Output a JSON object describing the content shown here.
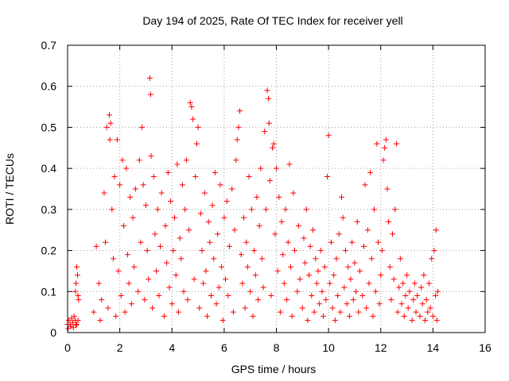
{
  "chart_data": {
    "type": "scatter",
    "title": "Day 194 of 2025, Rate Of TEC Index for receiver yell",
    "xlabel": "GPS time / hours",
    "ylabel": "ROTI / TECUs",
    "xlim": [
      0,
      16
    ],
    "ylim": [
      0,
      0.7
    ],
    "xticks": [
      0,
      2,
      4,
      6,
      8,
      10,
      12,
      14,
      16
    ],
    "yticks": [
      0,
      0.1,
      0.2,
      0.3,
      0.4,
      0.5,
      0.6,
      0.7
    ],
    "xtick_labels": [
      "0",
      "2",
      "4",
      "6",
      "8",
      "10",
      "12",
      "14",
      "16"
    ],
    "ytick_labels": [
      "0",
      "0.1",
      "0.2",
      "0.3",
      "0.4",
      "0.5",
      "0.6",
      "0.7"
    ],
    "grid": true,
    "marker": "+",
    "color": "#ff0000",
    "series": [
      {
        "name": "ROTI",
        "points": [
          [
            0.0,
            0.02
          ],
          [
            0.05,
            0.03
          ],
          [
            0.1,
            0.02
          ],
          [
            0.15,
            0.035
          ],
          [
            0.2,
            0.025
          ],
          [
            0.25,
            0.04
          ],
          [
            0.3,
            0.03
          ],
          [
            0.35,
            0.02
          ],
          [
            0.4,
            0.03
          ],
          [
            0.02,
            0.01
          ],
          [
            0.12,
            0.015
          ],
          [
            0.22,
            0.012
          ],
          [
            0.32,
            0.018
          ],
          [
            0.3,
            0.1
          ],
          [
            0.32,
            0.12
          ],
          [
            0.35,
            0.16
          ],
          [
            0.38,
            0.14
          ],
          [
            0.4,
            0.09
          ],
          [
            0.42,
            0.08
          ],
          [
            1.0,
            0.05
          ],
          [
            1.1,
            0.21
          ],
          [
            1.2,
            0.12
          ],
          [
            1.25,
            0.03
          ],
          [
            1.3,
            0.08
          ],
          [
            1.4,
            0.34
          ],
          [
            1.45,
            0.22
          ],
          [
            1.5,
            0.5
          ],
          [
            1.55,
            0.06
          ],
          [
            1.6,
            0.53
          ],
          [
            1.62,
            0.47
          ],
          [
            1.65,
            0.51
          ],
          [
            1.7,
            0.3
          ],
          [
            1.75,
            0.18
          ],
          [
            1.8,
            0.38
          ],
          [
            1.85,
            0.04
          ],
          [
            1.9,
            0.47
          ],
          [
            1.95,
            0.15
          ],
          [
            2.0,
            0.36
          ],
          [
            2.05,
            0.09
          ],
          [
            2.1,
            0.42
          ],
          [
            2.15,
            0.26
          ],
          [
            2.2,
            0.05
          ],
          [
            2.25,
            0.4
          ],
          [
            2.3,
            0.19
          ],
          [
            2.35,
            0.12
          ],
          [
            2.4,
            0.33
          ],
          [
            2.45,
            0.07
          ],
          [
            2.5,
            0.28
          ],
          [
            2.55,
            0.16
          ],
          [
            2.6,
            0.35
          ],
          [
            2.7,
            0.1
          ],
          [
            2.75,
            0.42
          ],
          [
            2.8,
            0.22
          ],
          [
            2.85,
            0.5
          ],
          [
            2.9,
            0.36
          ],
          [
            2.95,
            0.08
          ],
          [
            3.0,
            0.31
          ],
          [
            3.05,
            0.2
          ],
          [
            3.1,
            0.13
          ],
          [
            3.15,
            0.62
          ],
          [
            3.18,
            0.58
          ],
          [
            3.2,
            0.43
          ],
          [
            3.25,
            0.06
          ],
          [
            3.3,
            0.38
          ],
          [
            3.35,
            0.24
          ],
          [
            3.4,
            0.15
          ],
          [
            3.45,
            0.3
          ],
          [
            3.5,
            0.09
          ],
          [
            3.55,
            0.21
          ],
          [
            3.6,
            0.34
          ],
          [
            3.7,
            0.04
          ],
          [
            3.75,
            0.26
          ],
          [
            3.8,
            0.17
          ],
          [
            3.85,
            0.39
          ],
          [
            3.9,
            0.11
          ],
          [
            3.95,
            0.32
          ],
          [
            4.0,
            0.07
          ],
          [
            4.05,
            0.2
          ],
          [
            4.1,
            0.28
          ],
          [
            4.15,
            0.14
          ],
          [
            4.2,
            0.41
          ],
          [
            4.25,
            0.05
          ],
          [
            4.3,
            0.23
          ],
          [
            4.35,
            0.18
          ],
          [
            4.4,
            0.36
          ],
          [
            4.45,
            0.1
          ],
          [
            4.5,
            0.3
          ],
          [
            4.55,
            0.42
          ],
          [
            4.6,
            0.08
          ],
          [
            4.65,
            0.25
          ],
          [
            4.7,
            0.56
          ],
          [
            4.75,
            0.55
          ],
          [
            4.8,
            0.52
          ],
          [
            4.85,
            0.13
          ],
          [
            4.9,
            0.38
          ],
          [
            4.95,
            0.46
          ],
          [
            5.0,
            0.5
          ],
          [
            5.05,
            0.06
          ],
          [
            5.1,
            0.29
          ],
          [
            5.15,
            0.2
          ],
          [
            5.2,
            0.12
          ],
          [
            5.25,
            0.34
          ],
          [
            5.3,
            0.15
          ],
          [
            5.35,
            0.04
          ],
          [
            5.4,
            0.27
          ],
          [
            5.45,
            0.22
          ],
          [
            5.5,
            0.09
          ],
          [
            5.55,
            0.31
          ],
          [
            5.6,
            0.18
          ],
          [
            5.65,
            0.39
          ],
          [
            5.7,
            0.07
          ],
          [
            5.75,
            0.24
          ],
          [
            5.8,
            0.11
          ],
          [
            5.85,
            0.36
          ],
          [
            5.9,
            0.16
          ],
          [
            5.95,
            0.03
          ],
          [
            6.0,
            0.28
          ],
          [
            6.05,
            0.13
          ],
          [
            6.1,
            0.32
          ],
          [
            6.15,
            0.09
          ],
          [
            6.2,
            0.21
          ],
          [
            6.3,
            0.35
          ],
          [
            6.35,
            0.05
          ],
          [
            6.4,
            0.25
          ],
          [
            6.45,
            0.42
          ],
          [
            6.5,
            0.47
          ],
          [
            6.55,
            0.5
          ],
          [
            6.6,
            0.54
          ],
          [
            6.65,
            0.19
          ],
          [
            6.7,
            0.12
          ],
          [
            6.75,
            0.28
          ],
          [
            6.8,
            0.06
          ],
          [
            6.85,
            0.22
          ],
          [
            6.9,
            0.16
          ],
          [
            6.95,
            0.38
          ],
          [
            7.0,
            0.1
          ],
          [
            7.05,
            0.3
          ],
          [
            7.1,
            0.04
          ],
          [
            7.15,
            0.2
          ],
          [
            7.2,
            0.14
          ],
          [
            7.25,
            0.33
          ],
          [
            7.3,
            0.08
          ],
          [
            7.35,
            0.26
          ],
          [
            7.4,
            0.4
          ],
          [
            7.45,
            0.18
          ],
          [
            7.5,
            0.11
          ],
          [
            7.55,
            0.49
          ],
          [
            7.6,
            0.3
          ],
          [
            7.65,
            0.59
          ],
          [
            7.7,
            0.57
          ],
          [
            7.72,
            0.51
          ],
          [
            7.75,
            0.37
          ],
          [
            7.8,
            0.09
          ],
          [
            7.85,
            0.45
          ],
          [
            7.9,
            0.46
          ],
          [
            7.95,
            0.24
          ],
          [
            8.0,
            0.4
          ],
          [
            8.05,
            0.15
          ],
          [
            8.1,
            0.33
          ],
          [
            8.15,
            0.05
          ],
          [
            8.2,
            0.27
          ],
          [
            8.25,
            0.19
          ],
          [
            8.3,
            0.12
          ],
          [
            8.35,
            0.3
          ],
          [
            8.4,
            0.08
          ],
          [
            8.45,
            0.22
          ],
          [
            8.5,
            0.41
          ],
          [
            8.55,
            0.16
          ],
          [
            8.6,
            0.04
          ],
          [
            8.65,
            0.34
          ],
          [
            8.7,
            0.2
          ],
          [
            8.8,
            0.1
          ],
          [
            8.85,
            0.26
          ],
          [
            8.9,
            0.13
          ],
          [
            9.0,
            0.06
          ],
          [
            9.05,
            0.23
          ],
          [
            9.1,
            0.17
          ],
          [
            9.15,
            0.3
          ],
          [
            9.2,
            0.03
          ],
          [
            9.25,
            0.14
          ],
          [
            9.3,
            0.21
          ],
          [
            9.35,
            0.09
          ],
          [
            9.4,
            0.25
          ],
          [
            9.45,
            0.05
          ],
          [
            9.5,
            0.18
          ],
          [
            9.55,
            0.12
          ],
          [
            9.6,
            0.15
          ],
          [
            9.65,
            0.07
          ],
          [
            9.7,
            0.2
          ],
          [
            9.75,
            0.1
          ],
          [
            9.8,
            0.04
          ],
          [
            9.85,
            0.16
          ],
          [
            9.9,
            0.08
          ],
          [
            9.95,
            0.38
          ],
          [
            10.0,
            0.48
          ],
          [
            10.05,
            0.12
          ],
          [
            10.1,
            0.22
          ],
          [
            10.15,
            0.06
          ],
          [
            10.2,
            0.14
          ],
          [
            10.25,
            0.03
          ],
          [
            10.3,
            0.18
          ],
          [
            10.35,
            0.09
          ],
          [
            10.4,
            0.24
          ],
          [
            10.45,
            0.05
          ],
          [
            10.5,
            0.33
          ],
          [
            10.55,
            0.28
          ],
          [
            10.6,
            0.11
          ],
          [
            10.65,
            0.2
          ],
          [
            10.7,
            0.07
          ],
          [
            10.75,
            0.16
          ],
          [
            10.8,
            0.04
          ],
          [
            10.85,
            0.13
          ],
          [
            10.9,
            0.22
          ],
          [
            10.95,
            0.08
          ],
          [
            11.0,
            0.17
          ],
          [
            11.05,
            0.1
          ],
          [
            11.1,
            0.27
          ],
          [
            11.15,
            0.05
          ],
          [
            11.2,
            0.15
          ],
          [
            11.3,
            0.09
          ],
          [
            11.35,
            0.21
          ],
          [
            11.4,
            0.36
          ],
          [
            11.45,
            0.06
          ],
          [
            11.5,
            0.25
          ],
          [
            11.55,
            0.12
          ],
          [
            11.6,
            0.39
          ],
          [
            11.65,
            0.18
          ],
          [
            11.7,
            0.04
          ],
          [
            11.75,
            0.3
          ],
          [
            11.8,
            0.1
          ],
          [
            11.85,
            0.46
          ],
          [
            11.9,
            0.22
          ],
          [
            11.95,
            0.07
          ],
          [
            12.0,
            0.14
          ],
          [
            12.05,
            0.2
          ],
          [
            12.1,
            0.42
          ],
          [
            12.15,
            0.45
          ],
          [
            12.2,
            0.47
          ],
          [
            12.25,
            0.35
          ],
          [
            12.3,
            0.27
          ],
          [
            12.35,
            0.16
          ],
          [
            12.4,
            0.08
          ],
          [
            12.45,
            0.24
          ],
          [
            12.5,
            0.13
          ],
          [
            12.55,
            0.3
          ],
          [
            12.6,
            0.46
          ],
          [
            12.65,
            0.05
          ],
          [
            12.7,
            0.11
          ],
          [
            12.75,
            0.18
          ],
          [
            12.8,
            0.07
          ],
          [
            12.85,
            0.12
          ],
          [
            12.9,
            0.04
          ],
          [
            12.95,
            0.09
          ],
          [
            13.0,
            0.14
          ],
          [
            13.05,
            0.06
          ],
          [
            13.1,
            0.1
          ],
          [
            13.2,
            0.03
          ],
          [
            13.25,
            0.08
          ],
          [
            13.3,
            0.12
          ],
          [
            13.35,
            0.05
          ],
          [
            13.4,
            0.09
          ],
          [
            13.5,
            0.04
          ],
          [
            13.55,
            0.11
          ],
          [
            13.6,
            0.07
          ],
          [
            13.65,
            0.14
          ],
          [
            13.7,
            0.03
          ],
          [
            13.75,
            0.08
          ],
          [
            13.8,
            0.05
          ],
          [
            13.85,
            0.12
          ],
          [
            13.9,
            0.06
          ],
          [
            13.95,
            0.18
          ],
          [
            14.0,
            0.04
          ],
          [
            14.05,
            0.2
          ],
          [
            14.1,
            0.09
          ],
          [
            14.12,
            0.25
          ],
          [
            14.15,
            0.03
          ],
          [
            14.18,
            0.1
          ]
        ]
      }
    ]
  }
}
